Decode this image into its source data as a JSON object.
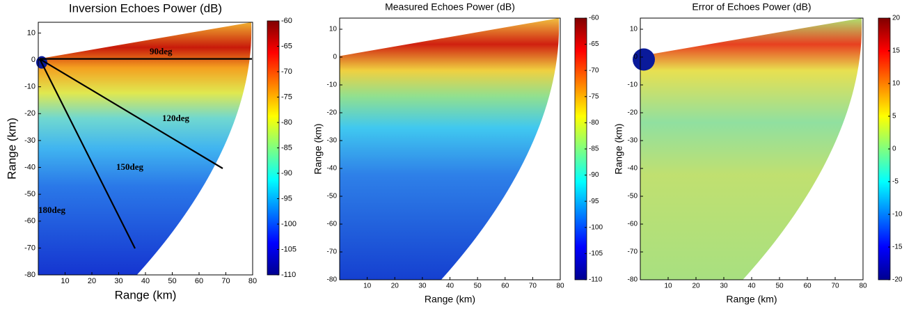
{
  "chart_data": [
    {
      "type": "heatmap",
      "title": "Inversion Echoes Power (dB)",
      "xlabel": "Range (km)",
      "ylabel": "Range (km)",
      "xlim": [
        0,
        80
      ],
      "ylim": [
        -80,
        14
      ],
      "xticks": [
        10,
        20,
        30,
        40,
        50,
        60,
        70,
        80
      ],
      "yticks": [
        10,
        0,
        -10,
        -20,
        -30,
        -40,
        -50,
        -60,
        -70,
        -80
      ],
      "colorbar": {
        "lim": [
          -110,
          -60
        ],
        "ticks": [
          -60,
          -65,
          -70,
          -75,
          -80,
          -85,
          -90,
          -95,
          -100,
          -105,
          -110
        ]
      },
      "annotations": [
        "90deg",
        "120deg",
        "150deg",
        "180deg"
      ]
    },
    {
      "type": "heatmap",
      "title": "Measured Echoes Power (dB)",
      "xlabel": "Range (km)",
      "ylabel": "Range (km)",
      "xlim": [
        0,
        80
      ],
      "ylim": [
        -80,
        14
      ],
      "xticks": [
        10,
        20,
        30,
        40,
        50,
        60,
        70,
        80
      ],
      "yticks": [
        10,
        0,
        -10,
        -20,
        -30,
        -40,
        -50,
        -60,
        -70,
        -80
      ],
      "colorbar": {
        "lim": [
          -110,
          -60
        ],
        "ticks": [
          -60,
          -65,
          -70,
          -75,
          -80,
          -85,
          -90,
          -95,
          -100,
          -105,
          -110
        ]
      }
    },
    {
      "type": "heatmap",
      "title": "Error of Echoes Power (dB)",
      "xlabel": "Range (km)",
      "ylabel": "Range (km)",
      "xlim": [
        0,
        80
      ],
      "ylim": [
        -80,
        14
      ],
      "xticks": [
        10,
        20,
        30,
        40,
        50,
        60,
        70,
        80
      ],
      "yticks": [
        10,
        0,
        -10,
        -20,
        -30,
        -40,
        -50,
        -60,
        -70,
        -80
      ],
      "colorbar": {
        "lim": [
          -20,
          20
        ],
        "ticks": [
          20,
          15,
          10,
          5,
          0,
          -5,
          -10,
          -15,
          -20
        ]
      }
    }
  ]
}
